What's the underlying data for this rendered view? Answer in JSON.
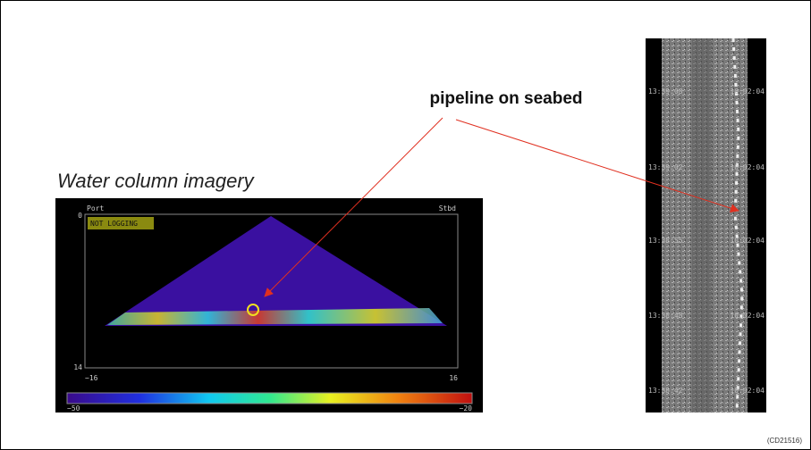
{
  "annotation": "pipeline on seabed",
  "water_column": {
    "heading": "Water column imagery",
    "port": "Port",
    "stbd": "Stbd",
    "status": "NOT LOGGING",
    "depth_top": "0",
    "depth_bottom": "14",
    "x_left": "−16",
    "x_right": "16",
    "scale_min": "−50",
    "scale_max": "−20"
  },
  "sidescan": {
    "left_times": [
      "13:39:08",
      "13:39:02",
      "13:38:55",
      "13:38:48",
      "13:38:42"
    ],
    "right_times": [
      "10:02:04",
      "10:02:04",
      "10:02:04",
      "10:02:04",
      "10:02:04"
    ]
  },
  "figure_id": "(CD21516)"
}
